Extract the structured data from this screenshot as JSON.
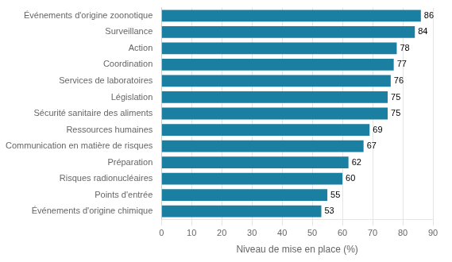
{
  "chart_data": {
    "type": "bar",
    "orientation": "horizontal",
    "categories": [
      "Événements d'origine chimique",
      "Points d'entrée",
      "Risques radionucléaires",
      "Préparation",
      "Communication en matière de risques",
      "Ressources humaines",
      "Sécurité sanitaire des aliments",
      "Législation",
      "Services de laboratoires",
      "Coordination",
      "Action",
      "Surveillance",
      "Événements d'origine zoonotique"
    ],
    "values": [
      53,
      55,
      60,
      62,
      67,
      69,
      75,
      75,
      76,
      77,
      78,
      84,
      86
    ],
    "color": "#1a7fa0",
    "xlabel": "Niveau de mise en place (%)",
    "xlim": [
      0,
      90
    ],
    "xticks": [
      0,
      10,
      20,
      30,
      40,
      50,
      60,
      70,
      80,
      90
    ],
    "grid": true,
    "data_labels": true
  }
}
